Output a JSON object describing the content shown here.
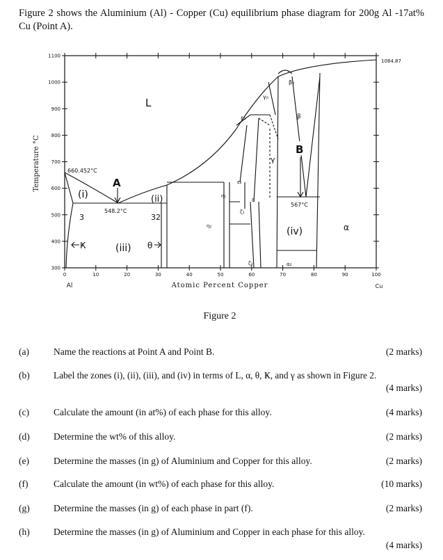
{
  "intro": "Figure 2 shows the Aluminium (Al) - Copper (Cu) equilibrium phase diagram for 200g Al -17at% Cu (Point A).",
  "figure": {
    "y_axis_title": "Temperature °C",
    "x_axis_title": "Atomic Percent Copper",
    "xlim": [
      0,
      100
    ],
    "ylim": [
      300,
      1100
    ],
    "xticks": [
      0,
      10,
      20,
      30,
      40,
      50,
      60,
      70,
      80,
      90,
      100
    ],
    "yticks": [
      300,
      400,
      500,
      600,
      700,
      800,
      900,
      1000,
      1100
    ],
    "end_labels": {
      "left": "Al",
      "right": "Cu"
    },
    "annotations": {
      "cu_melting": "1084.87",
      "al_melting": "660.452°C",
      "eutectic_temp": "548.2°C",
      "eutectoid_temp": "567°C"
    },
    "points": {
      "a": "A",
      "b": "B"
    },
    "zones": [
      "(i)",
      "(ii)",
      "(iii)",
      "(iv)"
    ],
    "compositions": [
      "3",
      "32"
    ],
    "phases": {
      "liquid": "L",
      "kappa": "Ҝ",
      "theta": "θ",
      "gamma": "γ",
      "alpha": "α",
      "beta": "β",
      "beta0": "β₀",
      "gamma0": "γ₀",
      "epsilon1": "ε₁",
      "epsilon2": "ε₂",
      "eta1": "η₁",
      "eta2": "η₂",
      "zeta1": "ζ₁",
      "zeta2": "ζ₂",
      "delta": "δ",
      "alpha2": "α₂"
    },
    "caption": "Figure 2"
  },
  "questions": [
    {
      "letter": "(a)",
      "text": "Name the reactions at Point A and Point B.",
      "marks": "(2 marks)"
    },
    {
      "letter": "(b)",
      "text": "Label the zones (i), (ii), (iii), and (iv) in terms of L, α, θ, Ҝ, and γ as shown in Figure 2.",
      "marks": "(4 marks)"
    },
    {
      "letter": "(c)",
      "text": "Calculate the amount (in at%) of each phase for this alloy.",
      "marks": "(4 marks)"
    },
    {
      "letter": "(d)",
      "text": "Determine the wt% of this alloy.",
      "marks": "(2 marks)"
    },
    {
      "letter": "(e)",
      "text": "Determine the masses (in g) of Aluminium and Copper for this alloy.",
      "marks": "(2 marks)"
    },
    {
      "letter": "(f)",
      "text": "Calculate the amount (in wt%) of each phase for this alloy.",
      "marks": "(10 marks)"
    },
    {
      "letter": "(g)",
      "text": "Determine the masses (in g) of each phase in part (f).",
      "marks": "(2 marks)"
    },
    {
      "letter": "(h)",
      "text": "Determine the masses (in g) of Aluminium and Copper in each phase for this alloy.",
      "marks": "(4 marks)"
    }
  ]
}
